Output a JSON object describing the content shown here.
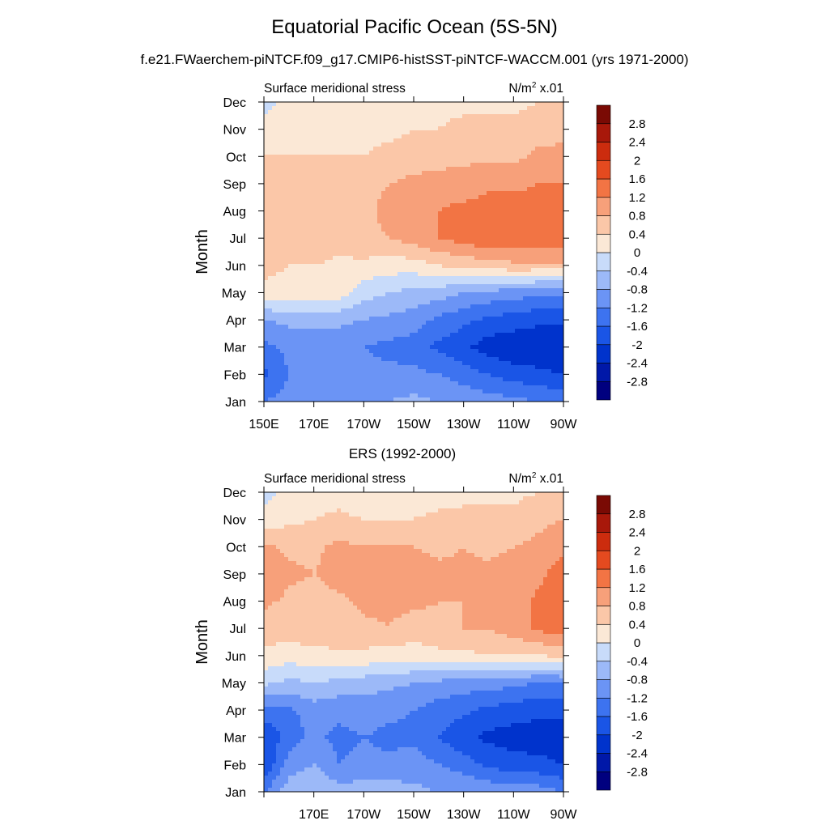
{
  "page": {
    "title": "Equatorial Pacific Ocean (5S-5N)",
    "subtitle": "f.e21.FWaerchem-piNTCF.f09_g17.CMIP6-histSST-piNTCF-WACCM.001 (yrs 1971-2000)"
  },
  "chart_data": [
    {
      "type": "contour",
      "panel_title": "",
      "left_label": "Surface meridional stress",
      "units_base": "N/m",
      "units_exp": "2",
      "units_suffix": " x.01",
      "ylabel": "Month",
      "months": [
        "Jan",
        "Feb",
        "Mar",
        "Apr",
        "May",
        "Jun",
        "Jul",
        "Aug",
        "Sep",
        "Oct",
        "Nov",
        "Dec"
      ],
      "lon_range": [
        150,
        270
      ],
      "x_ticks": [
        {
          "lon": 150,
          "label": "150E"
        },
        {
          "lon": 170,
          "label": "170E"
        },
        {
          "lon": 190,
          "label": "170W"
        },
        {
          "lon": 210,
          "label": "150W"
        },
        {
          "lon": 230,
          "label": "130W"
        },
        {
          "lon": 250,
          "label": "110W"
        },
        {
          "lon": 270,
          "label": "90W"
        }
      ],
      "lon_nodes": [
        150,
        160,
        170,
        180,
        190,
        200,
        210,
        220,
        230,
        240,
        250,
        260,
        270
      ],
      "grid": [
        [
          -1.2,
          -1.0,
          -0.9,
          -0.8,
          -0.8,
          -0.8,
          -0.7,
          -0.8,
          -0.9,
          -1.0,
          -1.1,
          -1.2,
          -1.3
        ],
        [
          -1.7,
          -1.2,
          -1.1,
          -1.1,
          -1.1,
          -1.1,
          -1.1,
          -1.2,
          -1.4,
          -1.6,
          -1.8,
          -1.9,
          -2.0
        ],
        [
          -1.3,
          -1.1,
          -1.1,
          -1.1,
          -1.2,
          -1.3,
          -1.4,
          -1.7,
          -1.9,
          -2.2,
          -2.3,
          -2.35,
          -2.3
        ],
        [
          -0.8,
          -0.7,
          -0.7,
          -0.7,
          -0.8,
          -0.9,
          -1.0,
          -1.3,
          -1.5,
          -1.7,
          -1.8,
          -1.9,
          -1.9
        ],
        [
          0.3,
          0.3,
          0.3,
          0.2,
          -0.2,
          -0.4,
          -0.5,
          -0.6,
          -0.8,
          -0.9,
          -1.0,
          -1.1,
          -1.1
        ],
        [
          0.5,
          0.4,
          0.4,
          0.3,
          0.3,
          0.2,
          0.2,
          0.4,
          0.5,
          0.6,
          0.7,
          0.7,
          0.7
        ],
        [
          0.7,
          0.7,
          0.7,
          0.6,
          0.7,
          0.8,
          1.0,
          1.2,
          1.4,
          1.5,
          1.5,
          1.5,
          1.5
        ],
        [
          0.6,
          0.6,
          0.6,
          0.6,
          0.7,
          0.9,
          1.0,
          1.2,
          1.3,
          1.4,
          1.4,
          1.4,
          1.4
        ],
        [
          0.5,
          0.5,
          0.5,
          0.5,
          0.7,
          0.8,
          0.9,
          1.0,
          1.0,
          1.1,
          1.1,
          1.2,
          1.2
        ],
        [
          0.4,
          0.4,
          0.4,
          0.4,
          0.4,
          0.5,
          0.6,
          0.6,
          0.7,
          0.7,
          0.7,
          0.9,
          0.9
        ],
        [
          0.2,
          0.3,
          0.3,
          0.3,
          0.3,
          0.3,
          0.4,
          0.4,
          0.5,
          0.5,
          0.5,
          0.6,
          0.7
        ],
        [
          -0.2,
          0.2,
          0.2,
          0.1,
          0.0,
          0.2,
          0.2,
          0.3,
          0.3,
          0.3,
          0.3,
          0.4,
          0.4
        ]
      ],
      "levels": [
        -2.8,
        -2.4,
        -2.0,
        -1.6,
        -1.2,
        -0.8,
        -0.4,
        0,
        0.4,
        0.8,
        1.2,
        1.6,
        2.0,
        2.4,
        2.8
      ],
      "level_labels": [
        "-2.8",
        "-2.4",
        "-2",
        "-1.6",
        "-1.2",
        "-0.8",
        "-0.4",
        "0",
        "0.4",
        "0.8",
        "1.2",
        "1.6",
        "2",
        "2.4",
        "2.8"
      ],
      "colors": [
        "#00007f",
        "#0018a8",
        "#0033cc",
        "#1a55e6",
        "#3d73f0",
        "#6b94f5",
        "#9cb9f8",
        "#c8dbfa",
        "#fbe8d6",
        "#fbc7a8",
        "#f7a07a",
        "#f27444",
        "#e44a1f",
        "#cc2c0e",
        "#a8180a",
        "#7a0a04"
      ]
    },
    {
      "type": "contour",
      "panel_title": "ERS (1992-2000)",
      "left_label": "Surface meridional stress",
      "units_base": "N/m",
      "units_exp": "2",
      "units_suffix": " x.01",
      "ylabel": "Month",
      "months": [
        "Jan",
        "Feb",
        "Mar",
        "Apr",
        "May",
        "Jun",
        "Jul",
        "Aug",
        "Sep",
        "Oct",
        "Nov",
        "Dec"
      ],
      "lon_range": [
        150,
        270
      ],
      "x_ticks": [
        {
          "lon": 150,
          "label": ""
        },
        {
          "lon": 170,
          "label": "170E"
        },
        {
          "lon": 190,
          "label": "170W"
        },
        {
          "lon": 210,
          "label": "150W"
        },
        {
          "lon": 230,
          "label": "130W"
        },
        {
          "lon": 250,
          "label": "110W"
        },
        {
          "lon": 270,
          "label": "90W"
        }
      ],
      "lon_nodes": [
        150,
        160,
        170,
        180,
        190,
        200,
        210,
        220,
        230,
        240,
        250,
        260,
        270
      ],
      "grid": [
        [
          -1.2,
          -0.6,
          -0.4,
          -0.6,
          -0.6,
          -0.6,
          -0.7,
          -0.8,
          -0.8,
          -0.9,
          -1.0,
          -1.0,
          -1.2
        ],
        [
          -2.0,
          -1.0,
          -0.8,
          -1.2,
          -1.1,
          -1.1,
          -1.0,
          -1.2,
          -1.4,
          -1.7,
          -1.8,
          -1.9,
          -2.0
        ],
        [
          -2.0,
          -1.4,
          -1.1,
          -1.3,
          -1.2,
          -1.3,
          -1.3,
          -1.6,
          -1.9,
          -2.1,
          -2.2,
          -2.2,
          -2.2
        ],
        [
          -1.3,
          -1.3,
          -1.0,
          -1.1,
          -1.0,
          -1.1,
          -1.2,
          -1.4,
          -1.5,
          -1.7,
          -1.8,
          -1.9,
          -1.9
        ],
        [
          -0.3,
          -0.5,
          -0.4,
          -0.5,
          -0.6,
          -0.7,
          -0.8,
          -0.9,
          -1.0,
          -1.0,
          -1.1,
          -1.2,
          -1.2
        ],
        [
          0.3,
          0.2,
          0.3,
          0.3,
          0.3,
          0.2,
          0.2,
          0.3,
          0.3,
          0.4,
          0.4,
          0.4,
          0.5
        ],
        [
          0.6,
          0.6,
          0.6,
          0.7,
          0.7,
          0.8,
          0.6,
          0.7,
          0.8,
          0.8,
          1.0,
          1.3,
          1.4
        ],
        [
          0.9,
          0.7,
          0.6,
          0.7,
          0.9,
          0.9,
          0.9,
          0.8,
          0.8,
          0.8,
          0.9,
          1.3,
          1.4
        ],
        [
          1.2,
          0.9,
          0.8,
          1.0,
          1.0,
          0.9,
          1.0,
          0.9,
          0.9,
          0.9,
          1.0,
          1.1,
          1.4
        ],
        [
          0.9,
          0.7,
          0.7,
          0.9,
          0.8,
          0.8,
          0.8,
          0.7,
          0.8,
          0.7,
          0.8,
          0.9,
          1.1
        ],
        [
          0.2,
          0.3,
          0.4,
          0.5,
          0.4,
          0.4,
          0.4,
          0.5,
          0.5,
          0.6,
          0.5,
          0.7,
          0.8
        ],
        [
          -0.2,
          0.2,
          0.2,
          0.2,
          0.1,
          0.2,
          0.2,
          0.2,
          0.3,
          0.2,
          0.3,
          0.4,
          0.4
        ]
      ],
      "levels": [
        -2.8,
        -2.4,
        -2.0,
        -1.6,
        -1.2,
        -0.8,
        -0.4,
        0,
        0.4,
        0.8,
        1.2,
        1.6,
        2.0,
        2.4,
        2.8
      ],
      "level_labels": [
        "-2.8",
        "-2.4",
        "-2",
        "-1.6",
        "-1.2",
        "-0.8",
        "-0.4",
        "0",
        "0.4",
        "0.8",
        "1.2",
        "1.6",
        "2",
        "2.4",
        "2.8"
      ],
      "colors": [
        "#00007f",
        "#0018a8",
        "#0033cc",
        "#1a55e6",
        "#3d73f0",
        "#6b94f5",
        "#9cb9f8",
        "#c8dbfa",
        "#fbe8d6",
        "#fbc7a8",
        "#f7a07a",
        "#f27444",
        "#e44a1f",
        "#cc2c0e",
        "#a8180a",
        "#7a0a04"
      ]
    }
  ]
}
